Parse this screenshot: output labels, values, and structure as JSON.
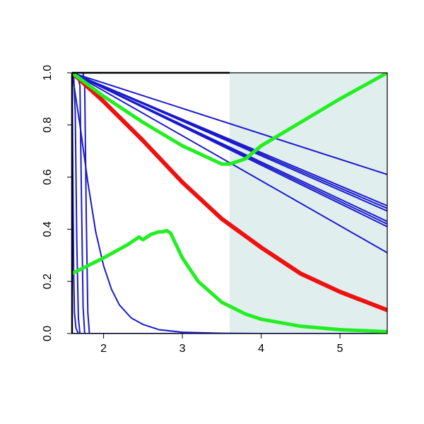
{
  "chart_data": {
    "type": "line",
    "title": "",
    "xlabel": "",
    "ylabel": "",
    "xlim": [
      1.6,
      5.6
    ],
    "ylim": [
      0.0,
      1.0
    ],
    "xticks": [
      2,
      3,
      4,
      5
    ],
    "yticks": [
      0.0,
      0.2,
      0.4,
      0.6,
      0.8,
      1.0
    ],
    "xtick_labels": [
      "2",
      "3",
      "4",
      "5"
    ],
    "ytick_labels": [
      "0.0",
      "0.2",
      "0.4",
      "0.6",
      "0.8",
      "1.0"
    ],
    "grid": false,
    "legend": "none",
    "shaded_region": {
      "x_from": 3.6,
      "x_to": 5.6,
      "color": "#e0eeee"
    },
    "colors": {
      "blue": "#1a1acc",
      "red": "#ee1111",
      "green": "#22ee22",
      "frame": "#000000"
    },
    "series": [
      {
        "style": "blue",
        "x": [
          1.6,
          5.6
        ],
        "y": [
          1.0,
          0.61
        ]
      },
      {
        "style": "blue",
        "x": [
          1.6,
          5.6
        ],
        "y": [
          1.0,
          0.49
        ]
      },
      {
        "style": "blue",
        "x": [
          1.6,
          5.6
        ],
        "y": [
          1.0,
          0.48
        ]
      },
      {
        "style": "blue",
        "x": [
          1.6,
          5.6
        ],
        "y": [
          1.0,
          0.47
        ]
      },
      {
        "style": "blue",
        "x": [
          1.6,
          5.6
        ],
        "y": [
          1.0,
          0.43
        ]
      },
      {
        "style": "blue",
        "x": [
          1.6,
          5.6
        ],
        "y": [
          1.0,
          0.42
        ]
      },
      {
        "style": "blue",
        "x": [
          1.6,
          5.6
        ],
        "y": [
          1.0,
          0.41
        ]
      },
      {
        "style": "blue",
        "x": [
          1.6,
          5.6
        ],
        "y": [
          1.0,
          0.31
        ]
      },
      {
        "style": "blue",
        "x": [
          1.6,
          1.63,
          1.66,
          1.7,
          1.75,
          1.8,
          1.9,
          2.0,
          2.1,
          2.2,
          2.35,
          2.5,
          2.7,
          3.0,
          3.5,
          4.0,
          5.6
        ],
        "y": [
          1.0,
          0.94,
          0.88,
          0.8,
          0.69,
          0.58,
          0.39,
          0.26,
          0.17,
          0.11,
          0.06,
          0.035,
          0.015,
          0.005,
          0.001,
          0.0,
          0.0
        ]
      },
      {
        "style": "blue",
        "x": [
          1.6,
          1.61,
          1.62,
          1.63,
          1.65,
          1.68,
          5.6
        ],
        "y": [
          1.0,
          0.6,
          0.25,
          0.08,
          0.02,
          0.0,
          0.0
        ]
      },
      {
        "style": "blue",
        "x": [
          1.6,
          1.62,
          1.64,
          1.66,
          1.68,
          1.7,
          5.6
        ],
        "y": [
          1.0,
          0.99,
          0.85,
          0.35,
          0.06,
          0.0,
          0.0
        ]
      },
      {
        "style": "blue",
        "x": [
          1.6,
          1.66,
          1.7,
          1.72,
          1.74,
          1.76,
          5.6
        ],
        "y": [
          1.0,
          1.0,
          0.95,
          0.5,
          0.1,
          0.0,
          0.0
        ]
      },
      {
        "style": "blue",
        "x": [
          1.6,
          1.74,
          1.76,
          1.78,
          1.8,
          1.82,
          5.6
        ],
        "y": [
          1.0,
          1.0,
          0.95,
          0.45,
          0.08,
          0.0,
          0.0
        ]
      },
      {
        "style": "blue",
        "x": [
          1.6,
          5.6
        ],
        "y": [
          0.0,
          0.0
        ]
      },
      {
        "style": "red",
        "x": [
          1.6,
          2.0,
          2.5,
          3.0,
          3.5,
          4.0,
          4.5,
          5.0,
          5.6
        ],
        "y": [
          1.0,
          0.89,
          0.74,
          0.58,
          0.44,
          0.33,
          0.23,
          0.16,
          0.09
        ]
      },
      {
        "style": "green",
        "x": [
          1.6,
          2.0,
          2.5,
          3.0,
          3.5,
          3.6,
          3.7,
          3.8,
          4.0,
          4.5,
          5.0,
          5.6
        ],
        "y": [
          1.0,
          0.91,
          0.81,
          0.72,
          0.65,
          0.65,
          0.66,
          0.67,
          0.72,
          0.81,
          0.9,
          1.0
        ]
      },
      {
        "style": "green",
        "x": [
          1.6,
          2.0,
          2.3,
          2.45,
          2.5,
          2.6,
          2.7,
          2.75,
          2.8,
          2.85,
          3.0,
          3.2,
          3.5,
          3.8,
          4.0,
          4.5,
          5.0,
          5.6
        ],
        "y": [
          0.23,
          0.29,
          0.34,
          0.37,
          0.36,
          0.38,
          0.39,
          0.39,
          0.395,
          0.385,
          0.29,
          0.2,
          0.12,
          0.075,
          0.055,
          0.028,
          0.015,
          0.007
        ]
      }
    ]
  }
}
